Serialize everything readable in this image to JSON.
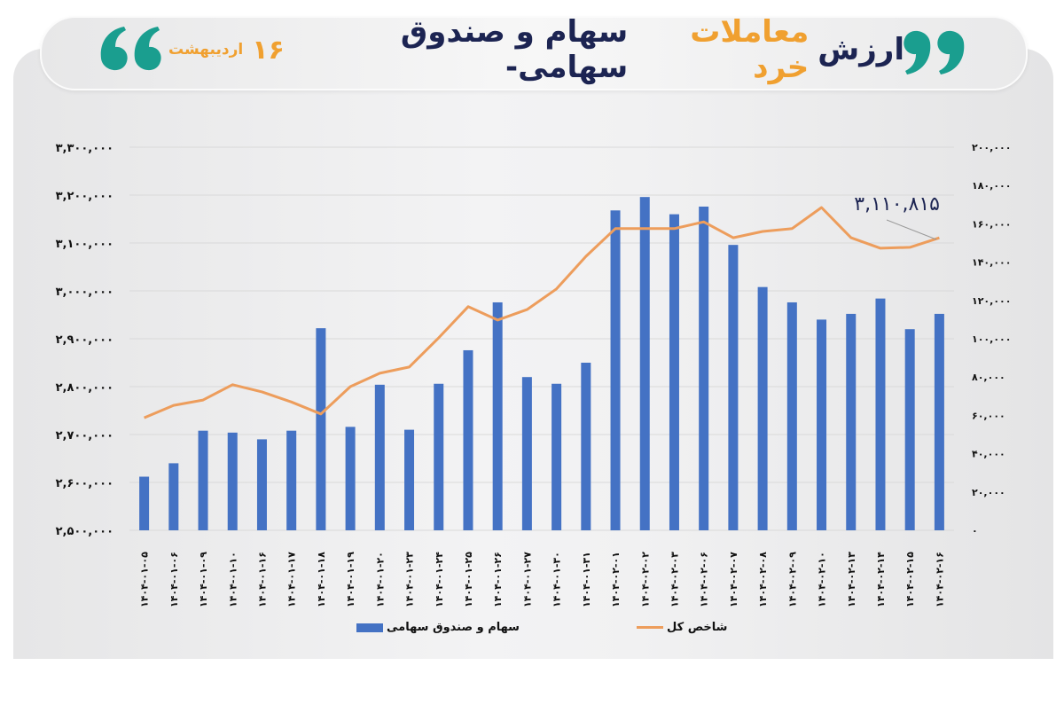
{
  "header": {
    "title_part1": "ارزش",
    "title_part2": "معاملات خرد",
    "title_part3": "سهام و صندوق سهامی-",
    "date_day": "۱۶",
    "date_month": "اردیبهشت",
    "quote_icon": "quote-marks",
    "colors": {
      "navy": "#1c2452",
      "orange": "#f0a030",
      "teal": "#1a9e8f"
    }
  },
  "legend": {
    "bar_label": "سهام و صندوق سهامی",
    "line_label": "شاخص کل"
  },
  "annotation": {
    "label": "۳,۱۱۰,۸۱۵"
  },
  "chart_data": {
    "type": "bar+line",
    "title": "ارزش معاملات خرد سهام و صندوق سهامی- ۱۶ اردیبهشت",
    "xlabel": "",
    "ylabel_left": "",
    "ylabel_right": "",
    "grid": true,
    "legend_position": "bottom",
    "categories": [
      "۱۴۰۴-۰۱-۰۵",
      "۱۴۰۴-۰۱-۰۶",
      "۱۴۰۴-۰۱-۰۹",
      "۱۴۰۴-۰۱-۱۰",
      "۱۴۰۴-۰۱-۱۶",
      "۱۴۰۴-۰۱-۱۷",
      "۱۴۰۴-۰۱-۱۸",
      "۱۴۰۴-۰۱-۱۹",
      "۱۴۰۴-۰۱-۲۰",
      "۱۴۰۴-۰۱-۲۳",
      "۱۴۰۴-۰۱-۲۴",
      "۱۴۰۴-۰۱-۲۵",
      "۱۴۰۴-۰۱-۲۶",
      "۱۴۰۴-۰۱-۲۷",
      "۱۴۰۴-۰۱-۳۰",
      "۱۴۰۴-۰۱-۳۱",
      "۱۴۰۴-۰۲-۰۱",
      "۱۴۰۴-۰۲-۰۲",
      "۱۴۰۴-۰۲-۰۳",
      "۱۴۰۴-۰۲-۰۶",
      "۱۴۰۴-۰۲-۰۷",
      "۱۴۰۴-۰۲-۰۸",
      "۱۴۰۴-۰۲-۰۹",
      "۱۴۰۴-۰۲-۱۰",
      "۱۴۰۴-۰۲-۱۳",
      "۱۴۰۴-۰۲-۱۴",
      "۱۴۰۴-۰۲-۱۵",
      "۱۴۰۴-۰۲-۱۶"
    ],
    "series": [
      {
        "name": "سهام و صندوق سهامی",
        "type": "bar",
        "axis": "right",
        "color": "#4472c4",
        "values": [
          28000,
          35000,
          52000,
          51000,
          47500,
          52000,
          105500,
          54000,
          76000,
          52500,
          76500,
          94000,
          119000,
          80000,
          76500,
          87500,
          167000,
          174000,
          165000,
          169000,
          149000,
          127000,
          119000,
          110000,
          113000,
          121000,
          105000,
          113000
        ]
      },
      {
        "name": "شاخص کل",
        "type": "line",
        "axis": "left",
        "color": "#ed9d5c",
        "values": [
          2735000,
          2761000,
          2772000,
          2804000,
          2789000,
          2768000,
          2743000,
          2800000,
          2828000,
          2841000,
          2902000,
          2967000,
          2939000,
          2961000,
          3004000,
          3072000,
          3130000,
          3130000,
          3130000,
          3144000,
          3111000,
          3124000,
          3130000,
          3174000,
          3111000,
          3089000,
          3091000,
          3110815
        ]
      }
    ],
    "ylim_left": [
      2500000,
      3300000
    ],
    "ylim_right": [
      0,
      200000
    ],
    "left_ticks": [
      "۲,۵۰۰,۰۰۰",
      "۲,۶۰۰,۰۰۰",
      "۲,۷۰۰,۰۰۰",
      "۲,۸۰۰,۰۰۰",
      "۲,۹۰۰,۰۰۰",
      "۳,۰۰۰,۰۰۰",
      "۳,۱۰۰,۰۰۰",
      "۳,۲۰۰,۰۰۰",
      "۳,۳۰۰,۰۰۰"
    ],
    "right_ticks": [
      "۰",
      "۲۰,۰۰۰",
      "۴۰,۰۰۰",
      "۶۰,۰۰۰",
      "۸۰,۰۰۰",
      "۱۰۰,۰۰۰",
      "۱۲۰,۰۰۰",
      "۱۴۰,۰۰۰",
      "۱۶۰,۰۰۰",
      "۱۸۰,۰۰۰",
      "۲۰۰,۰۰۰"
    ],
    "annotations": [
      {
        "text": "۳,۱۱۰,۸۱۵",
        "target_index": 27,
        "series": "شاخص کل"
      }
    ]
  }
}
